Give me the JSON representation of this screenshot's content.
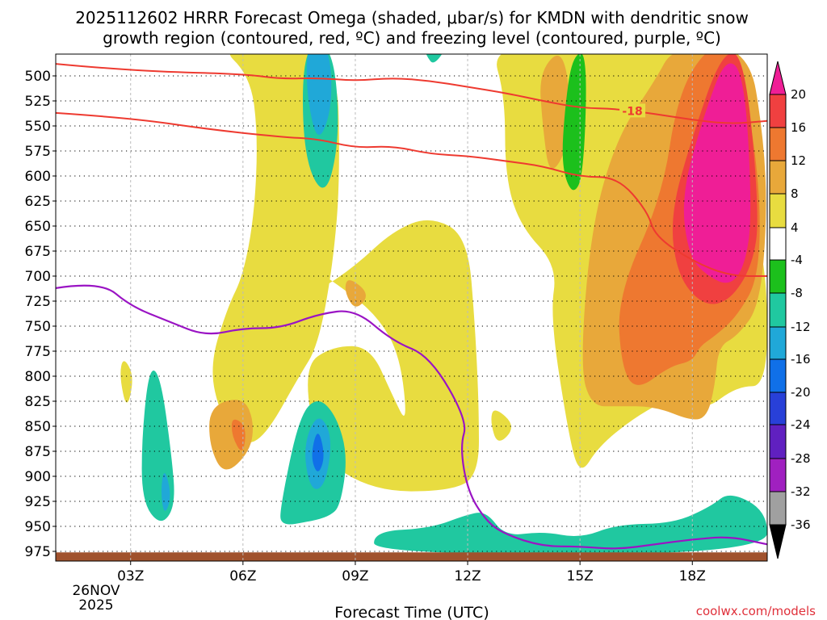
{
  "chart_data": {
    "type": "contour",
    "title_line1": "2025112602 HRRR Forecast Omega (shaded, μbar/s) for KMDN with dendritic snow",
    "title_line2": "growth region (contoured, red, ºC) and freezing level (contoured, purple, ºC)",
    "xlabel": "Forecast Time (UTC)",
    "credit": "coolwx.com/models",
    "x_hours": [
      1,
      20
    ],
    "x_ticks": [
      {
        "hour": 3,
        "label": "03Z"
      },
      {
        "hour": 6,
        "label": "06Z"
      },
      {
        "hour": 9,
        "label": "09Z"
      },
      {
        "hour": 12,
        "label": "12Z"
      },
      {
        "hour": 15,
        "label": "15Z"
      },
      {
        "hour": 18,
        "label": "18Z"
      }
    ],
    "date_label": [
      "26NOV",
      "2025"
    ],
    "y_ticks": [
      500,
      525,
      550,
      575,
      600,
      625,
      650,
      675,
      700,
      725,
      750,
      775,
      800,
      825,
      850,
      875,
      900,
      925,
      950,
      975
    ],
    "y_label_strings": [
      "500",
      "525",
      "550",
      "575",
      "600",
      "625",
      "650",
      "675",
      "700",
      "725",
      "750",
      "775",
      "800",
      "825",
      "850",
      "875",
      "900",
      "925",
      "950",
      "975"
    ],
    "colorbar": {
      "levels": [
        "20",
        "16",
        "12",
        "8",
        "4",
        "-4",
        "-8",
        "-12",
        "-16",
        "-20",
        "-24",
        "-28",
        "-32",
        "-36"
      ],
      "colors": [
        "#ef1e96",
        "#f04040",
        "#ee7830",
        "#e8a83a",
        "#e8dc40",
        "#ffffff",
        "#1cc01c",
        "#20c8a0",
        "#20a8d8",
        "#1070e8",
        "#2840d8",
        "#6020c0",
        "#a020c0",
        "#a0a0a0",
        "#000000"
      ]
    },
    "dgz_contour_label": "-18",
    "dgz_line_upper": [
      [
        1,
        488
      ],
      [
        3,
        495
      ],
      [
        6,
        498
      ],
      [
        7,
        503
      ],
      [
        8,
        502
      ],
      [
        9,
        505
      ],
      [
        10,
        502
      ],
      [
        11,
        505
      ],
      [
        12,
        511
      ],
      [
        13,
        517
      ],
      [
        14,
        525
      ],
      [
        15,
        532
      ],
      [
        16,
        533
      ],
      [
        17,
        538
      ],
      [
        18,
        544
      ],
      [
        19,
        548
      ],
      [
        20,
        545
      ]
    ],
    "dgz_line_lower": [
      [
        1,
        537
      ],
      [
        3,
        542
      ],
      [
        5,
        553
      ],
      [
        7,
        561
      ],
      [
        8,
        563
      ],
      [
        9,
        572
      ],
      [
        10,
        570
      ],
      [
        11,
        578
      ],
      [
        12,
        580
      ],
      [
        13,
        585
      ],
      [
        14,
        590
      ],
      [
        15,
        601
      ],
      [
        16,
        601
      ],
      [
        16.8,
        635
      ],
      [
        17,
        660
      ],
      [
        18,
        685
      ],
      [
        19,
        700
      ],
      [
        20,
        700
      ]
    ],
    "freezing_level": [
      [
        1,
        712
      ],
      [
        2.2,
        705
      ],
      [
        3,
        730
      ],
      [
        4,
        745
      ],
      [
        5,
        760
      ],
      [
        6,
        752
      ],
      [
        7,
        752
      ],
      [
        8,
        738
      ],
      [
        9,
        733
      ],
      [
        10,
        765
      ],
      [
        11,
        780
      ],
      [
        12,
        845
      ],
      [
        11.8,
        870
      ],
      [
        12,
        915
      ],
      [
        12.5,
        945
      ],
      [
        13,
        958
      ],
      [
        14,
        970
      ],
      [
        15,
        970
      ],
      [
        16,
        973
      ],
      [
        17,
        968
      ],
      [
        18,
        963
      ],
      [
        19,
        960
      ],
      [
        20,
        968
      ]
    ],
    "omega_regions": [
      {
        "level": "4",
        "points": [
          [
            5.3,
            468
          ],
          [
            8.5,
            468
          ],
          [
            8.6,
            600
          ],
          [
            8.4,
            690
          ],
          [
            8,
            770
          ],
          [
            7.5,
            800
          ],
          [
            6.6,
            860
          ],
          [
            6,
            870
          ],
          [
            5.4,
            840
          ],
          [
            5.1,
            790
          ],
          [
            5.6,
            730
          ],
          [
            6,
            700
          ],
          [
            6.3,
            640
          ],
          [
            6.4,
            560
          ],
          [
            6.2,
            500
          ]
        ]
      },
      {
        "level": "4",
        "points": [
          [
            6.6,
            660
          ],
          [
            7.4,
            720
          ],
          [
            8,
            715
          ],
          [
            9,
            690
          ],
          [
            10,
            655
          ],
          [
            11,
            640
          ],
          [
            12,
            660
          ],
          [
            12.2,
            750
          ],
          [
            12.3,
            830
          ],
          [
            12.3,
            900
          ],
          [
            11.5,
            915
          ],
          [
            9.5,
            915
          ],
          [
            8,
            880
          ],
          [
            7.6,
            790
          ],
          [
            8.4,
            770
          ],
          [
            9.4,
            770
          ],
          [
            10,
            820
          ],
          [
            10.4,
            850
          ],
          [
            10.2,
            780
          ],
          [
            9.6,
            740
          ],
          [
            8.6,
            710
          ]
        ]
      },
      {
        "level": "4",
        "points": [
          [
            12.6,
            468
          ],
          [
            15.8,
            468
          ],
          [
            16.8,
            468
          ],
          [
            19.5,
            468
          ],
          [
            19.6,
            640
          ],
          [
            20,
            700
          ],
          [
            20,
            810
          ],
          [
            19.2,
            810
          ],
          [
            18.3,
            835
          ],
          [
            17.5,
            820
          ],
          [
            16.5,
            840
          ],
          [
            15.5,
            870
          ],
          [
            15,
            900
          ],
          [
            14.7,
            860
          ],
          [
            14.2,
            740
          ],
          [
            14.4,
            690
          ],
          [
            13.4,
            650
          ],
          [
            13,
            600
          ],
          [
            13,
            520
          ]
        ]
      },
      {
        "level": "4",
        "points": [
          [
            2.8,
            780
          ],
          [
            3.1,
            800
          ],
          [
            2.9,
            835
          ],
          [
            2.7,
            800
          ]
        ]
      },
      {
        "level": "4",
        "points": [
          [
            12.7,
            830
          ],
          [
            13.3,
            850
          ],
          [
            12.8,
            870
          ],
          [
            12.6,
            845
          ]
        ]
      },
      {
        "level": "8",
        "points": [
          [
            13.9,
            495
          ],
          [
            14.6,
            470
          ],
          [
            14.8,
            560
          ],
          [
            14.2,
            605
          ],
          [
            14,
            550
          ]
        ]
      },
      {
        "level": "8",
        "points": [
          [
            15.3,
            650
          ],
          [
            16,
            560
          ],
          [
            17,
            505
          ],
          [
            17.5,
            470
          ],
          [
            19.5,
            470
          ],
          [
            19.9,
            560
          ],
          [
            20,
            640
          ],
          [
            19.8,
            730
          ],
          [
            19.2,
            760
          ],
          [
            18.7,
            770
          ],
          [
            18.6,
            810
          ],
          [
            18.4,
            840
          ],
          [
            18,
            845
          ],
          [
            17,
            830
          ],
          [
            16,
            830
          ],
          [
            15.3,
            830
          ],
          [
            15,
            790
          ]
        ]
      },
      {
        "level": "8",
        "points": [
          [
            5.1,
            830
          ],
          [
            6,
            820
          ],
          [
            6.3,
            845
          ],
          [
            6.2,
            875
          ],
          [
            5.5,
            900
          ],
          [
            5.1,
            870
          ]
        ]
      },
      {
        "level": "8",
        "points": [
          [
            8.8,
            700
          ],
          [
            9.4,
            718
          ],
          [
            9,
            735
          ],
          [
            8.7,
            715
          ]
        ]
      },
      {
        "level": "12",
        "points": [
          [
            16,
            720
          ],
          [
            17.2,
            620
          ],
          [
            17.6,
            520
          ],
          [
            18.4,
            470
          ],
          [
            19.2,
            470
          ],
          [
            19.8,
            600
          ],
          [
            19.8,
            700
          ],
          [
            19.2,
            740
          ],
          [
            18.6,
            760
          ],
          [
            18.2,
            770
          ],
          [
            18,
            785
          ],
          [
            17.4,
            790
          ],
          [
            16.5,
            815
          ],
          [
            16.1,
            790
          ]
        ]
      },
      {
        "level": "12",
        "points": [
          [
            5.7,
            840
          ],
          [
            6.1,
            850
          ],
          [
            6,
            880
          ],
          [
            5.7,
            860
          ]
        ]
      },
      {
        "level": "16",
        "points": [
          [
            17.4,
            640
          ],
          [
            18,
            560
          ],
          [
            18.8,
            475
          ],
          [
            19.4,
            480
          ],
          [
            19.8,
            640
          ],
          [
            19.6,
            690
          ],
          [
            19,
            725
          ],
          [
            18.3,
            730
          ],
          [
            17.6,
            700
          ]
        ]
      },
      {
        "level": "20",
        "points": [
          [
            17.7,
            620
          ],
          [
            18.3,
            540
          ],
          [
            18.9,
            480
          ],
          [
            19.4,
            500
          ],
          [
            19.6,
            640
          ],
          [
            19.4,
            690
          ],
          [
            19,
            710
          ],
          [
            18.4,
            700
          ],
          [
            17.9,
            680
          ]
        ]
      },
      {
        "level": "-4",
        "points": [
          [
            14.8,
            480
          ],
          [
            15.2,
            475
          ],
          [
            15.1,
            600
          ],
          [
            14.8,
            620
          ],
          [
            14.5,
            590
          ],
          [
            14.6,
            530
          ]
        ]
      },
      {
        "level": "-8",
        "points": [
          [
            7.6,
            468
          ],
          [
            8.4,
            468
          ],
          [
            8.6,
            560
          ],
          [
            8.2,
            625
          ],
          [
            7.6,
            580
          ]
        ]
      },
      {
        "level": "-8",
        "points": [
          [
            3.5,
            790
          ],
          [
            3.8,
            800
          ],
          [
            4.1,
            880
          ],
          [
            4.2,
            930
          ],
          [
            3.8,
            950
          ],
          [
            3.3,
            925
          ],
          [
            3.3,
            860
          ]
        ]
      },
      {
        "level": "-8",
        "points": [
          [
            7,
            930
          ],
          [
            7.5,
            840
          ],
          [
            8,
            820
          ],
          [
            8.5,
            840
          ],
          [
            8.8,
            880
          ],
          [
            8.6,
            930
          ],
          [
            8.3,
            940
          ],
          [
            7.8,
            945
          ],
          [
            7,
            950
          ]
        ]
      },
      {
        "level": "-8",
        "points": [
          [
            9.5,
            955
          ],
          [
            11,
            952
          ],
          [
            12,
            938
          ],
          [
            12.5,
            935
          ],
          [
            13,
            960
          ],
          [
            14,
            955
          ],
          [
            15,
            962
          ],
          [
            16,
            948
          ],
          [
            17.5,
            947
          ],
          [
            18.5,
            930
          ],
          [
            19,
            915
          ],
          [
            20,
            935
          ],
          [
            20,
            978
          ],
          [
            9.5,
            978
          ]
        ]
      },
      {
        "level": "-8",
        "points": [
          [
            10.8,
            468
          ],
          [
            11.5,
            468
          ],
          [
            11.1,
            490
          ],
          [
            10.9,
            480
          ]
        ]
      },
      {
        "level": "-12",
        "points": [
          [
            7.7,
            468
          ],
          [
            8.3,
            468
          ],
          [
            8.4,
            530
          ],
          [
            8,
            570
          ],
          [
            7.7,
            520
          ]
        ]
      },
      {
        "level": "-12",
        "points": [
          [
            7.6,
            870
          ],
          [
            8,
            835
          ],
          [
            8.4,
            860
          ],
          [
            8.2,
            910
          ],
          [
            7.8,
            915
          ]
        ]
      },
      {
        "level": "-12",
        "points": [
          [
            3.9,
            890
          ],
          [
            4.1,
            920
          ],
          [
            3.9,
            940
          ],
          [
            3.8,
            915
          ]
        ]
      },
      {
        "level": "-16",
        "points": [
          [
            7.8,
            880
          ],
          [
            8,
            850
          ],
          [
            8.2,
            880
          ],
          [
            8,
            900
          ]
        ]
      }
    ],
    "ground_band_top_mb": 976
  }
}
